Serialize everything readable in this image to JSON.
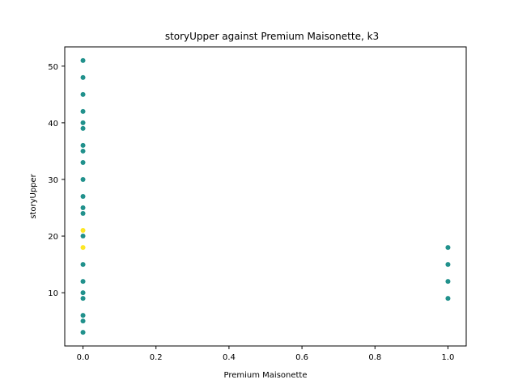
{
  "chart_data": {
    "type": "scatter",
    "title": "storyUpper against Premium Maisonette, k3",
    "xlabel": "Premium Maisonette",
    "ylabel": "storyUpper",
    "xlim": [
      -0.05,
      1.05
    ],
    "ylim": [
      0.6,
      53.4
    ],
    "xticks": [
      0.0,
      0.2,
      0.4,
      0.6,
      0.8,
      1.0
    ],
    "xtick_labels": [
      "0.0",
      "0.2",
      "0.4",
      "0.6",
      "0.8",
      "1.0"
    ],
    "yticks": [
      10,
      20,
      30,
      40,
      50
    ],
    "ytick_labels": [
      "10",
      "20",
      "30",
      "40",
      "50"
    ],
    "grid": false,
    "legend": "none",
    "points": [
      {
        "x": 0,
        "y": 51,
        "color": "#21918c"
      },
      {
        "x": 0,
        "y": 48,
        "color": "#21918c"
      },
      {
        "x": 0,
        "y": 45,
        "color": "#21918c"
      },
      {
        "x": 0,
        "y": 42,
        "color": "#21918c"
      },
      {
        "x": 0,
        "y": 40,
        "color": "#21918c"
      },
      {
        "x": 0,
        "y": 39,
        "color": "#21918c"
      },
      {
        "x": 0,
        "y": 36,
        "color": "#21918c"
      },
      {
        "x": 0,
        "y": 35,
        "color": "#21918c"
      },
      {
        "x": 0,
        "y": 33,
        "color": "#21918c"
      },
      {
        "x": 0,
        "y": 30,
        "color": "#21918c"
      },
      {
        "x": 0,
        "y": 27,
        "color": "#21918c"
      },
      {
        "x": 0,
        "y": 25,
        "color": "#21918c"
      },
      {
        "x": 0,
        "y": 24,
        "color": "#21918c"
      },
      {
        "x": 0,
        "y": 21,
        "color": "#fde725"
      },
      {
        "x": 0,
        "y": 20,
        "color": "#21918c"
      },
      {
        "x": 0,
        "y": 18,
        "color": "#fde725"
      },
      {
        "x": 0,
        "y": 15,
        "color": "#21918c"
      },
      {
        "x": 0,
        "y": 12,
        "color": "#21918c"
      },
      {
        "x": 0,
        "y": 10,
        "color": "#21918c"
      },
      {
        "x": 0,
        "y": 9,
        "color": "#21918c"
      },
      {
        "x": 0,
        "y": 6,
        "color": "#21918c"
      },
      {
        "x": 0,
        "y": 5,
        "color": "#21918c"
      },
      {
        "x": 0,
        "y": 3,
        "color": "#21918c"
      },
      {
        "x": 1,
        "y": 18,
        "color": "#21918c"
      },
      {
        "x": 1,
        "y": 15,
        "color": "#21918c"
      },
      {
        "x": 1,
        "y": 12,
        "color": "#21918c"
      },
      {
        "x": 1,
        "y": 9,
        "color": "#21918c"
      }
    ]
  }
}
